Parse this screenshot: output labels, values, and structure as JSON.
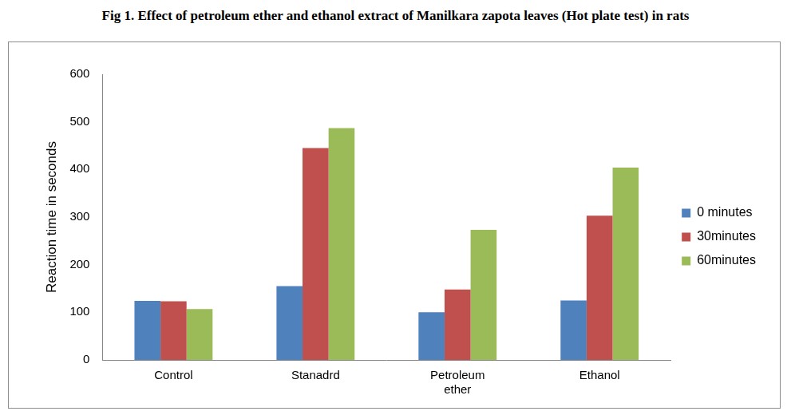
{
  "chart_data": {
    "type": "bar",
    "title": "Fig 1.  Effect of petroleum ether and ethanol extract of Manilkara zapota leaves (Hot plate test) in rats",
    "y_label": "Reaction time in seconds",
    "categories": [
      "Control",
      "Stanadrd",
      "Petroleum ether",
      "Ethanol"
    ],
    "series": [
      {
        "name": "0 minutes",
        "color": "#4f81bd",
        "values": [
          124,
          155,
          100,
          125
        ]
      },
      {
        "name": "30minutes",
        "color": "#c0504d",
        "values": [
          123,
          445,
          148,
          303
        ]
      },
      {
        "name": "60minutes",
        "color": "#9bbb59",
        "values": [
          107,
          487,
          273,
          404
        ]
      }
    ],
    "ylim": [
      0,
      600
    ],
    "yticks": [
      0,
      100,
      200,
      300,
      400,
      500,
      600
    ],
    "grid": false,
    "legend": "right"
  }
}
